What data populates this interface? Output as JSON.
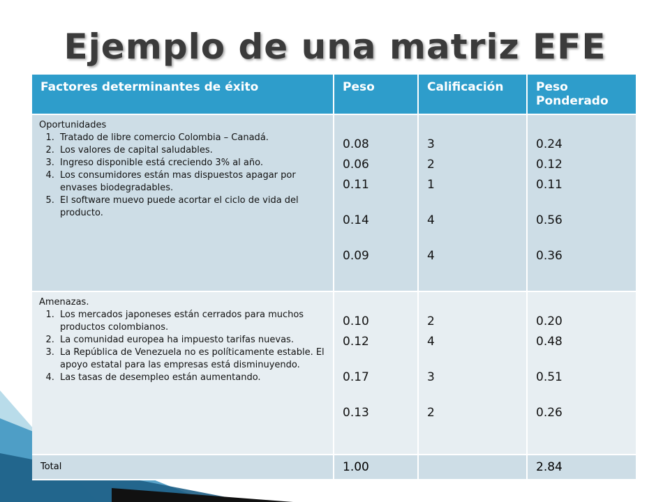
{
  "title": "Ejemplo de una matriz EFE",
  "headers": [
    "Factores determinantes de éxito",
    "Peso",
    "Calificación",
    "Peso Ponderado"
  ],
  "opportunities": {
    "label": "Oportunidades",
    "items": [
      "Tratado de libre comercio Colombia – Canadá.",
      "Los valores de capital saludables.",
      "Ingreso disponible está creciendo 3% al año.",
      "Los consumidores están mas dispuestos apagar por envases biodegradables.",
      "El software muevo puede acortar el ciclo de vida del producto."
    ],
    "peso": [
      "0.08",
      "0.06",
      "0.11",
      "0.14",
      "0.09"
    ],
    "calificacion": [
      "3",
      "2",
      "1",
      "4",
      "4"
    ],
    "ponderado": [
      "0.24",
      "0.12",
      "0.11",
      "0.56",
      "0.36"
    ]
  },
  "threats": {
    "label": "Amenazas.",
    "items": [
      "Los mercados japoneses están cerrados para muchos productos colombianos.",
      "La comunidad europea ha impuesto tarifas nuevas.",
      "La República de Venezuela no es políticamente estable. El apoyo estatal para las empresas está disminuyendo.",
      "Las tasas de desempleo están aumentando."
    ],
    "peso": [
      "0.10",
      "0.12",
      "0.17",
      "0.13"
    ],
    "calificacion": [
      "2",
      "4",
      "3",
      "2"
    ],
    "ponderado": [
      "0.20",
      "0.48",
      "0.51",
      "0.26"
    ]
  },
  "total": {
    "label": "Total",
    "peso": "1.00",
    "calificacion": "",
    "ponderado": "2.84"
  },
  "colors": {
    "header": "#2e9dcb",
    "row_dark": "#cddde6",
    "row_light": "#e7eef2",
    "title": "#3b3b3b"
  }
}
